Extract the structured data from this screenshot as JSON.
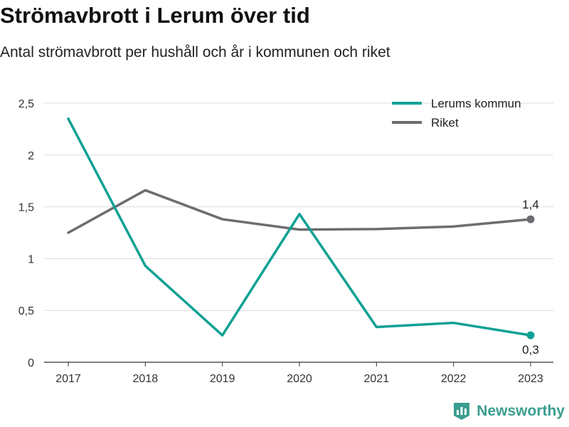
{
  "title": "Strömavbrott i Lerum över tid",
  "subtitle": "Antal strömavbrott per hushåll och år i kommunen och riket",
  "brand": {
    "name": "Newsworthy",
    "icon": "newsworthy-logo-icon",
    "color": "#3a9e8f"
  },
  "chart_data": {
    "type": "line",
    "x": [
      "2017",
      "2018",
      "2019",
      "2020",
      "2021",
      "2022",
      "2023"
    ],
    "series": [
      {
        "name": "Lerums kommun",
        "color": "#10a195",
        "values": [
          2.35,
          0.93,
          0.26,
          1.43,
          0.34,
          0.38,
          0.26
        ],
        "end_label": "0,3"
      },
      {
        "name": "Riket",
        "color": "#6d6c70",
        "values": [
          1.25,
          1.66,
          1.38,
          1.28,
          1.285,
          1.31,
          1.38
        ],
        "end_label": "1,4"
      }
    ],
    "ylim": [
      0,
      2.5
    ],
    "yticks": [
      0,
      0.5,
      1,
      1.5,
      2,
      2.5
    ],
    "ytick_labels": [
      "0",
      "0,5",
      "1",
      "1,5",
      "2",
      "2,5"
    ],
    "xlabel": "",
    "ylabel": "",
    "grid": true,
    "legend_position": "top-right"
  }
}
